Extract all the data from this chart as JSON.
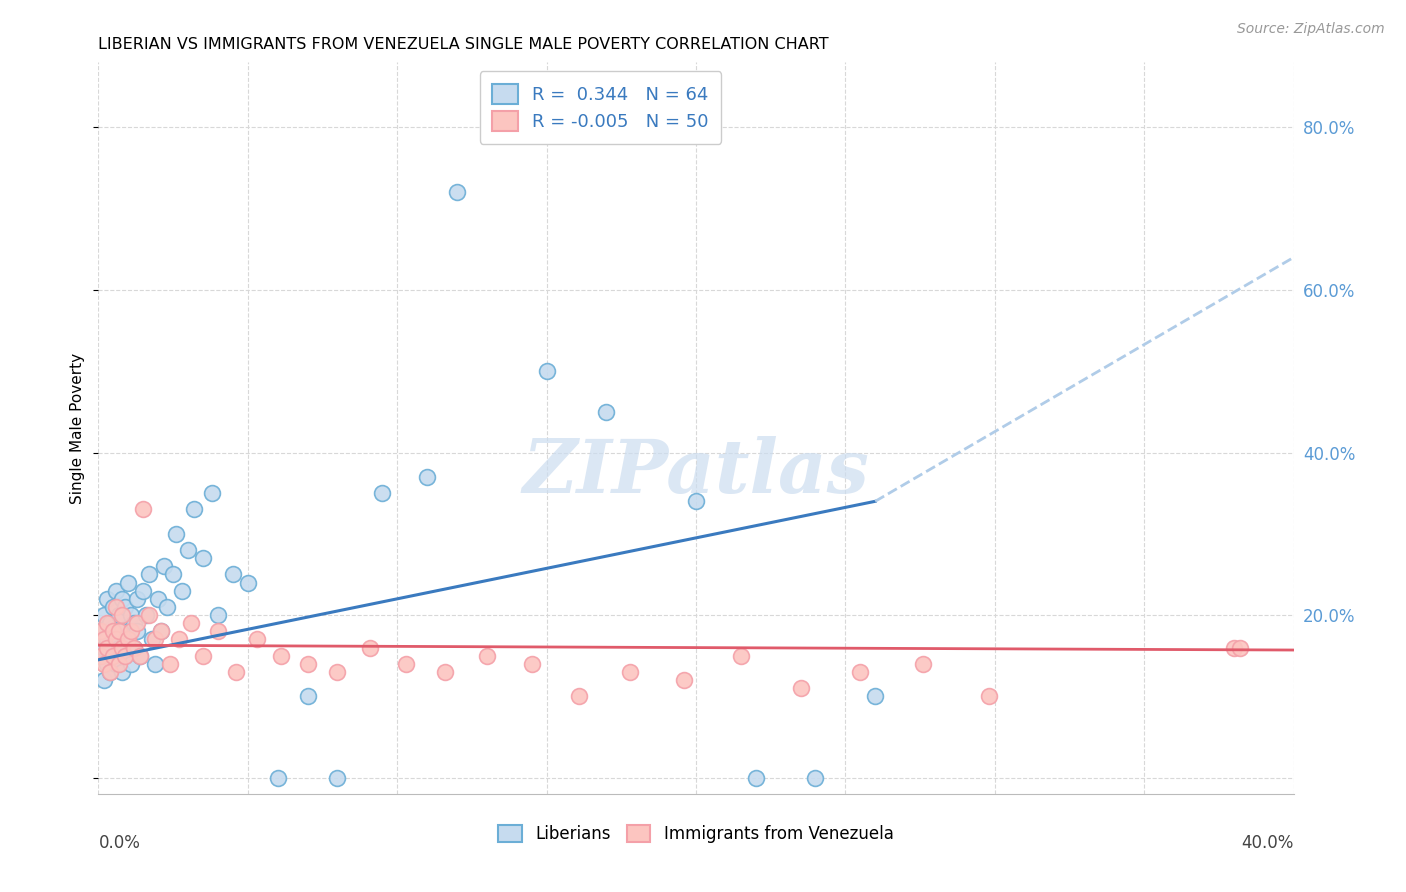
{
  "title": "LIBERIAN VS IMMIGRANTS FROM VENEZUELA SINGLE MALE POVERTY CORRELATION CHART",
  "source": "Source: ZipAtlas.com",
  "ylabel": "Single Male Poverty",
  "xlim": [
    0.0,
    0.4
  ],
  "ylim": [
    -0.02,
    0.88
  ],
  "yticks": [
    0.0,
    0.2,
    0.4,
    0.6,
    0.8
  ],
  "ytick_labels": [
    "",
    "20.0%",
    "40.0%",
    "60.0%",
    "80.0%"
  ],
  "xticks": [
    0.0,
    0.05,
    0.1,
    0.15,
    0.2,
    0.25,
    0.3,
    0.35,
    0.4
  ],
  "liberian_R": 0.344,
  "liberian_N": 64,
  "venezuela_R": -0.005,
  "venezuela_N": 50,
  "liberian_marker_face": "#c6dbef",
  "liberian_marker_edge": "#6baed6",
  "venezuela_marker_face": "#fcc5c0",
  "venezuela_marker_edge": "#f4a0a8",
  "blue_line_color": "#3a7abf",
  "pink_line_color": "#e05a6a",
  "dashed_line_color": "#b0cce8",
  "watermark_color": "#ccddf0",
  "grid_color": "#d8d8d8",
  "right_axis_color": "#5b9bd5",
  "liberian_x": [
    0.001,
    0.001,
    0.002,
    0.002,
    0.002,
    0.003,
    0.003,
    0.003,
    0.004,
    0.004,
    0.004,
    0.005,
    0.005,
    0.005,
    0.006,
    0.006,
    0.006,
    0.007,
    0.007,
    0.008,
    0.008,
    0.008,
    0.009,
    0.009,
    0.01,
    0.01,
    0.011,
    0.011,
    0.012,
    0.012,
    0.013,
    0.013,
    0.014,
    0.015,
    0.016,
    0.017,
    0.018,
    0.019,
    0.02,
    0.021,
    0.022,
    0.023,
    0.025,
    0.026,
    0.028,
    0.03,
    0.032,
    0.035,
    0.038,
    0.04,
    0.045,
    0.05,
    0.06,
    0.07,
    0.08,
    0.095,
    0.11,
    0.12,
    0.15,
    0.17,
    0.2,
    0.22,
    0.24,
    0.26
  ],
  "liberian_y": [
    0.15,
    0.18,
    0.16,
    0.2,
    0.12,
    0.14,
    0.17,
    0.22,
    0.13,
    0.19,
    0.16,
    0.21,
    0.15,
    0.18,
    0.23,
    0.17,
    0.14,
    0.2,
    0.16,
    0.22,
    0.18,
    0.13,
    0.21,
    0.15,
    0.24,
    0.17,
    0.2,
    0.14,
    0.19,
    0.16,
    0.22,
    0.18,
    0.15,
    0.23,
    0.2,
    0.25,
    0.17,
    0.14,
    0.22,
    0.18,
    0.26,
    0.21,
    0.25,
    0.3,
    0.23,
    0.28,
    0.33,
    0.27,
    0.35,
    0.2,
    0.25,
    0.24,
    0.0,
    0.1,
    0.0,
    0.35,
    0.37,
    0.72,
    0.5,
    0.45,
    0.34,
    0.0,
    0.0,
    0.1
  ],
  "venezuela_x": [
    0.001,
    0.001,
    0.002,
    0.002,
    0.003,
    0.003,
    0.004,
    0.005,
    0.005,
    0.006,
    0.006,
    0.007,
    0.007,
    0.008,
    0.008,
    0.009,
    0.01,
    0.011,
    0.012,
    0.013,
    0.014,
    0.015,
    0.017,
    0.019,
    0.021,
    0.024,
    0.027,
    0.031,
    0.035,
    0.04,
    0.046,
    0.053,
    0.061,
    0.07,
    0.08,
    0.091,
    0.103,
    0.116,
    0.13,
    0.145,
    0.161,
    0.178,
    0.196,
    0.215,
    0.235,
    0.255,
    0.276,
    0.298,
    0.38,
    0.382
  ],
  "venezuela_y": [
    0.15,
    0.18,
    0.17,
    0.14,
    0.16,
    0.19,
    0.13,
    0.18,
    0.15,
    0.17,
    0.21,
    0.14,
    0.18,
    0.16,
    0.2,
    0.15,
    0.17,
    0.18,
    0.16,
    0.19,
    0.15,
    0.33,
    0.2,
    0.17,
    0.18,
    0.14,
    0.17,
    0.19,
    0.15,
    0.18,
    0.13,
    0.17,
    0.15,
    0.14,
    0.13,
    0.16,
    0.14,
    0.13,
    0.15,
    0.14,
    0.1,
    0.13,
    0.12,
    0.15,
    0.11,
    0.13,
    0.14,
    0.1,
    0.16,
    0.16
  ],
  "blue_line_x": [
    0.0,
    0.26
  ],
  "blue_line_y": [
    0.145,
    0.34
  ],
  "dashed_line_x": [
    0.26,
    0.4
  ],
  "dashed_line_y": [
    0.34,
    0.64
  ],
  "pink_line_x": [
    0.0,
    0.4
  ],
  "pink_line_y": [
    0.163,
    0.157
  ]
}
